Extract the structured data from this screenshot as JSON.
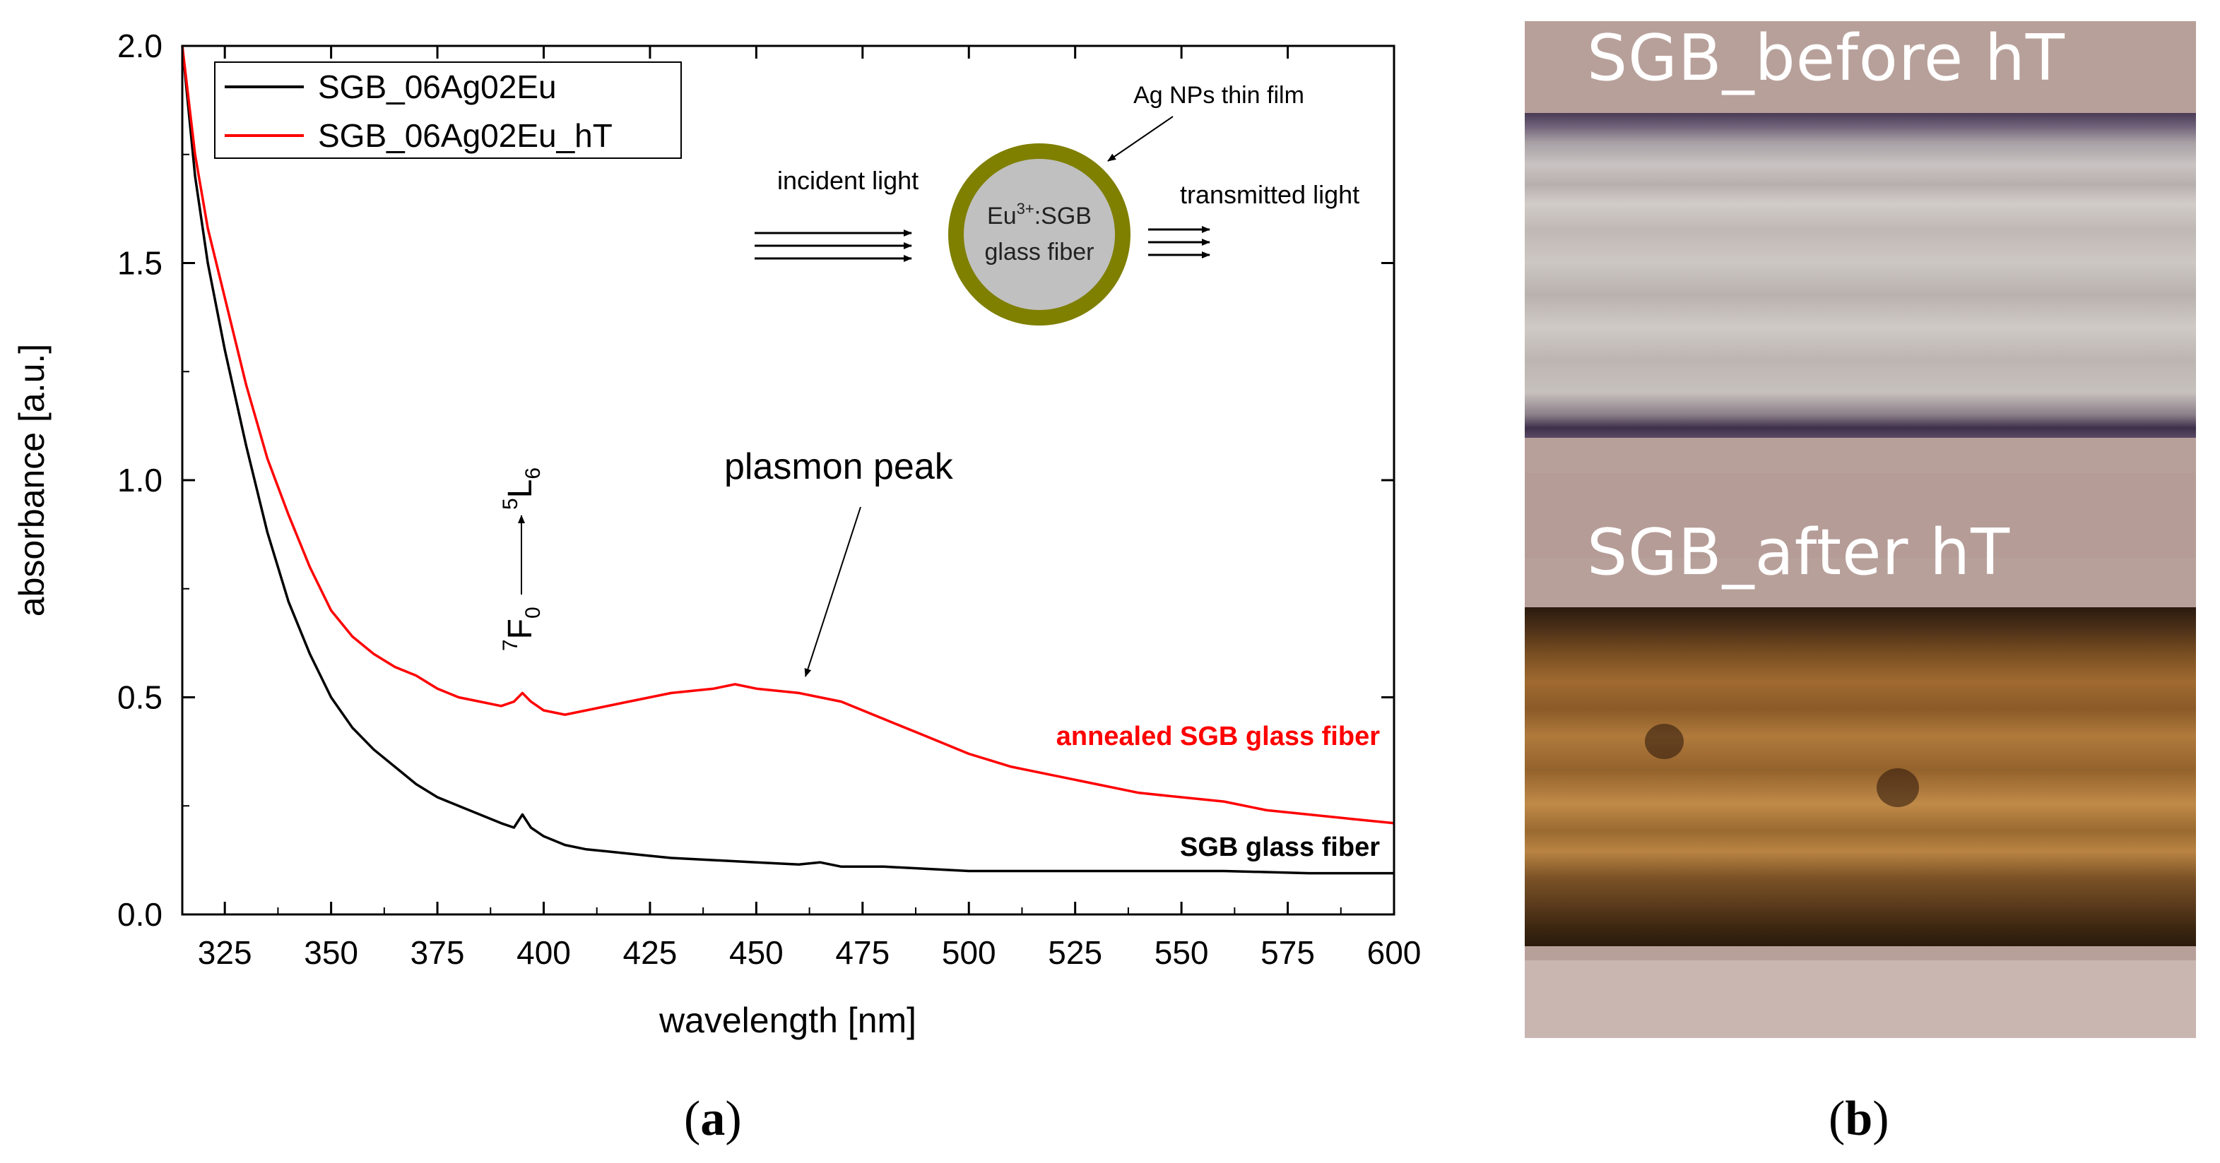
{
  "chart_data": {
    "type": "line",
    "xlabel": "wavelength [nm]",
    "ylabel": "absorbance [a.u.]",
    "xlim": [
      315,
      600
    ],
    "ylim": [
      0.0,
      2.0
    ],
    "xticks": [
      325,
      350,
      375,
      400,
      425,
      450,
      475,
      500,
      525,
      550,
      575,
      600
    ],
    "xtick_labels": [
      "325",
      "350",
      "375",
      "400",
      "425",
      "450",
      "475",
      "500",
      "525",
      "550",
      "575",
      "600"
    ],
    "yticks": [
      0.0,
      0.5,
      1.0,
      1.5,
      2.0
    ],
    "ytick_labels": [
      "0.0",
      "0.5",
      "1.0",
      "1.5",
      "2.0"
    ],
    "grid": false,
    "legend_position": "top-left",
    "series": [
      {
        "name": "SGB_06Ag02Eu",
        "color": "#000000",
        "x": [
          315,
          318,
          321,
          325,
          330,
          335,
          340,
          345,
          350,
          355,
          360,
          365,
          370,
          375,
          380,
          385,
          390,
          393,
          395,
          397,
          400,
          405,
          410,
          415,
          420,
          425,
          430,
          440,
          450,
          460,
          465,
          470,
          480,
          490,
          500,
          520,
          540,
          560,
          580,
          600
        ],
        "y": [
          2.0,
          1.7,
          1.5,
          1.3,
          1.08,
          0.88,
          0.72,
          0.6,
          0.5,
          0.43,
          0.38,
          0.34,
          0.3,
          0.27,
          0.25,
          0.23,
          0.21,
          0.2,
          0.23,
          0.2,
          0.18,
          0.16,
          0.15,
          0.145,
          0.14,
          0.135,
          0.13,
          0.125,
          0.12,
          0.115,
          0.12,
          0.11,
          0.11,
          0.105,
          0.1,
          0.1,
          0.1,
          0.1,
          0.095,
          0.095
        ]
      },
      {
        "name": "SGB_06Ag02Eu_hT",
        "color": "#ff0000",
        "x": [
          315,
          318,
          321,
          325,
          330,
          335,
          340,
          345,
          350,
          355,
          360,
          365,
          370,
          375,
          380,
          385,
          390,
          393,
          395,
          397,
          400,
          405,
          410,
          420,
          430,
          440,
          445,
          450,
          460,
          470,
          480,
          490,
          500,
          510,
          520,
          530,
          540,
          550,
          560,
          570,
          580,
          590,
          600
        ],
        "y": [
          2.0,
          1.75,
          1.58,
          1.42,
          1.22,
          1.05,
          0.92,
          0.8,
          0.7,
          0.64,
          0.6,
          0.57,
          0.55,
          0.52,
          0.5,
          0.49,
          0.48,
          0.49,
          0.51,
          0.49,
          0.47,
          0.46,
          0.47,
          0.49,
          0.51,
          0.52,
          0.53,
          0.52,
          0.51,
          0.49,
          0.45,
          0.41,
          0.37,
          0.34,
          0.32,
          0.3,
          0.28,
          0.27,
          0.26,
          0.24,
          0.23,
          0.22,
          0.21
        ]
      }
    ],
    "annotations": {
      "plasmon_peak": "plasmon peak",
      "annealed_label": "annealed SGB glass fiber",
      "fiber_label": "SGB glass fiber",
      "transition_lower": "F",
      "transition_lower_sup": "7",
      "transition_lower_sub": "0",
      "transition_upper": "L",
      "transition_upper_sup": "5",
      "transition_upper_sub": "6"
    },
    "inset": {
      "incident": "incident light",
      "transmitted": "transmitted light",
      "film": "Ag NPs thin film",
      "core_line1_prefix": "Eu",
      "core_line1_sup": "3+",
      "core_line1_suffix": ":SGB",
      "core_line2": "glass fiber",
      "ring_color": "#7f7f00",
      "core_color": "#c0c0c0"
    }
  },
  "panels": {
    "a": "a",
    "b": "b"
  },
  "photos": {
    "before_title": "SGB_before hT",
    "after_title": "SGB_after hT"
  }
}
